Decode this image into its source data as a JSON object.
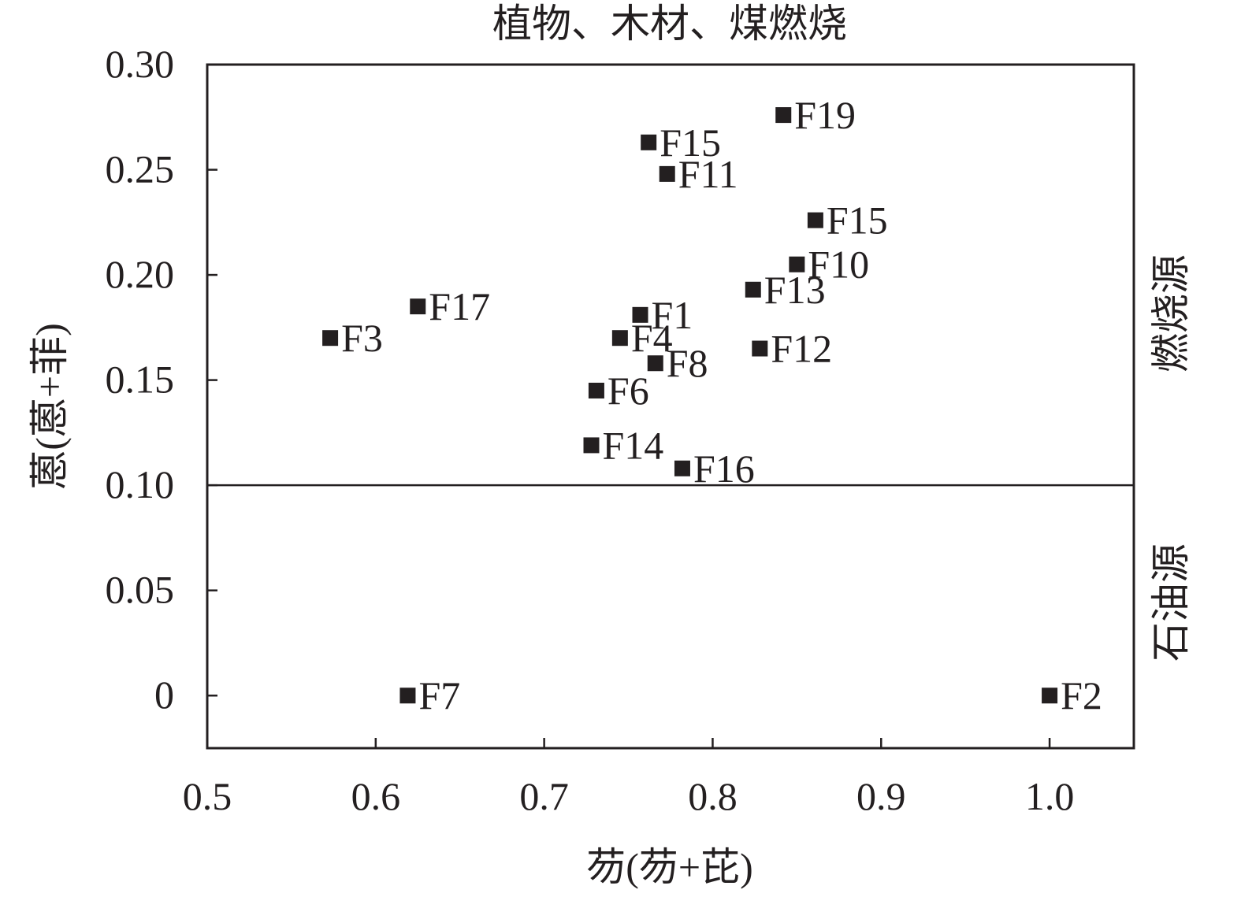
{
  "chart_data": {
    "type": "scatter",
    "title": "植物、木材、煤燃烧",
    "xlabel": "芴(芴+芘)",
    "ylabel": "蒽(蒽+菲)",
    "xlim": [
      0.5,
      1.05
    ],
    "ylim": [
      -0.025,
      0.3
    ],
    "x_ticks": [
      0.5,
      0.6,
      0.7,
      0.8,
      0.9,
      1.0
    ],
    "x_tick_labels": [
      "0.5",
      "0.6",
      "0.7",
      "0.8",
      "0.9",
      "1.0"
    ],
    "y_ticks": [
      0,
      0.05,
      0.1,
      0.15,
      0.2,
      0.25,
      0.3
    ],
    "y_tick_labels": [
      "0",
      "0.05",
      "0.10",
      "0.15",
      "0.20",
      "0.25",
      "0.30"
    ],
    "grid": false,
    "threshold_y": 0.1,
    "zone_upper": "燃烧源",
    "zone_lower": "石油源",
    "marker_color": "#231f20",
    "points": [
      {
        "label": "F19",
        "x": 0.842,
        "y": 0.276
      },
      {
        "label": "F15",
        "x": 0.762,
        "y": 0.263
      },
      {
        "label": "F11",
        "x": 0.773,
        "y": 0.248
      },
      {
        "label": "F15",
        "x": 0.861,
        "y": 0.226
      },
      {
        "label": "F10",
        "x": 0.85,
        "y": 0.205
      },
      {
        "label": "F13",
        "x": 0.824,
        "y": 0.193
      },
      {
        "label": "F17",
        "x": 0.625,
        "y": 0.185
      },
      {
        "label": "F1",
        "x": 0.757,
        "y": 0.181
      },
      {
        "label": "F3",
        "x": 0.573,
        "y": 0.17
      },
      {
        "label": "F4",
        "x": 0.745,
        "y": 0.17
      },
      {
        "label": "F12",
        "x": 0.828,
        "y": 0.165
      },
      {
        "label": "F8",
        "x": 0.766,
        "y": 0.158
      },
      {
        "label": "F6",
        "x": 0.731,
        "y": 0.145
      },
      {
        "label": "F14",
        "x": 0.728,
        "y": 0.119
      },
      {
        "label": "F16",
        "x": 0.782,
        "y": 0.108
      },
      {
        "label": "F7",
        "x": 0.619,
        "y": 0.0
      },
      {
        "label": "F2",
        "x": 1.0,
        "y": 0.0
      }
    ]
  }
}
